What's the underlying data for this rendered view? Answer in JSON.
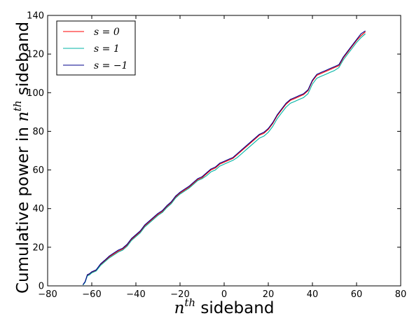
{
  "chart_data": {
    "type": "line",
    "title": "",
    "xlabel_base": "n",
    "xlabel_sup": "th",
    "xlabel_rest": " sideband",
    "ylabel_pre": "Cumulative power in ",
    "ylabel_base": "n",
    "ylabel_sup": "th",
    "ylabel_rest": " sideband",
    "xlim": [
      -80,
      80
    ],
    "ylim": [
      0,
      140
    ],
    "xticks": [
      -80,
      -60,
      -40,
      -20,
      0,
      20,
      40,
      60,
      80
    ],
    "yticks": [
      0,
      20,
      40,
      60,
      80,
      100,
      120,
      140
    ],
    "xtick_labels": [
      "−80",
      "−60",
      "−40",
      "−20",
      "0",
      "20",
      "40",
      "60",
      "80"
    ],
    "ytick_labels": [
      "0",
      "20",
      "40",
      "60",
      "80",
      "100",
      "120",
      "140"
    ],
    "grid": false,
    "legend_position": "top-left",
    "x": [
      -64,
      -63,
      -62,
      -61,
      -60,
      -58,
      -56,
      -54,
      -52,
      -50,
      -48,
      -46,
      -44,
      -42,
      -40,
      -38,
      -36,
      -34,
      -32,
      -30,
      -28,
      -26,
      -24,
      -22,
      -20,
      -18,
      -16,
      -14,
      -12,
      -10,
      -8,
      -6,
      -4,
      -2,
      0,
      2,
      4,
      6,
      8,
      10,
      12,
      14,
      16,
      18,
      20,
      22,
      24,
      26,
      28,
      30,
      32,
      34,
      36,
      38,
      40,
      42,
      44,
      46,
      48,
      50,
      52,
      54,
      56,
      58,
      60,
      62,
      64
    ],
    "series": [
      {
        "name": "s = 0",
        "color": "#ff0000",
        "values": [
          0.5,
          2,
          5.5,
          6,
          7,
          8,
          11,
          13,
          15,
          16.5,
          18,
          19,
          21,
          24,
          26,
          28,
          31,
          33,
          35,
          37,
          38.5,
          41,
          43,
          46,
          48,
          49.5,
          51,
          53,
          55,
          56,
          58,
          60,
          61,
          63,
          64,
          65,
          66,
          68,
          70,
          72,
          74,
          76,
          78,
          79,
          81,
          84,
          88,
          91,
          94,
          96,
          97,
          98,
          99,
          101,
          106,
          109,
          110,
          111,
          112,
          113,
          114,
          118,
          121,
          124,
          127,
          129.5,
          131.5
        ]
      },
      {
        "name": "s = 1",
        "color": "#00b3a4",
        "values": [
          0.4,
          1.8,
          5.2,
          5.7,
          6.7,
          7.7,
          10.6,
          12.6,
          14.5,
          16,
          17.5,
          18.5,
          20.5,
          23.5,
          25.5,
          27.5,
          30.5,
          32.5,
          34.5,
          36.5,
          38,
          40.5,
          42.5,
          45.5,
          47.5,
          49,
          50.5,
          52.5,
          54.5,
          55.5,
          57,
          59,
          60,
          62,
          63,
          64,
          65,
          66.5,
          68.5,
          70.5,
          72.5,
          74.5,
          76.5,
          77.5,
          79.5,
          82.5,
          86.5,
          89.5,
          92.5,
          94.5,
          95.5,
          96.5,
          97.5,
          99.5,
          104.5,
          107.5,
          108.5,
          109.5,
          110.5,
          111.5,
          113,
          117,
          120,
          123,
          126,
          128.5,
          130.5
        ]
      },
      {
        "name": "s = −1",
        "color": "#00008b",
        "values": [
          0.6,
          2.2,
          5.8,
          6.3,
          7.3,
          8.3,
          11.4,
          13.4,
          15.5,
          17,
          18.5,
          19.5,
          21.5,
          24.5,
          26.5,
          28.5,
          31.5,
          33.5,
          35.5,
          37.5,
          39,
          41.5,
          43.5,
          46.5,
          48.5,
          50,
          51.5,
          53.5,
          55.5,
          56.5,
          58.5,
          60.5,
          61.5,
          63.5,
          64.5,
          65.5,
          66.5,
          68.5,
          70.5,
          72.5,
          74.5,
          76.5,
          78.5,
          79.5,
          81.5,
          84.5,
          88.5,
          91.5,
          94.5,
          96.5,
          97.5,
          98.5,
          99.5,
          101.5,
          106.5,
          109.5,
          110.5,
          111.5,
          112.5,
          113.5,
          114.5,
          118.5,
          121.5,
          124.5,
          127.5,
          130.5,
          132
        ]
      }
    ]
  }
}
